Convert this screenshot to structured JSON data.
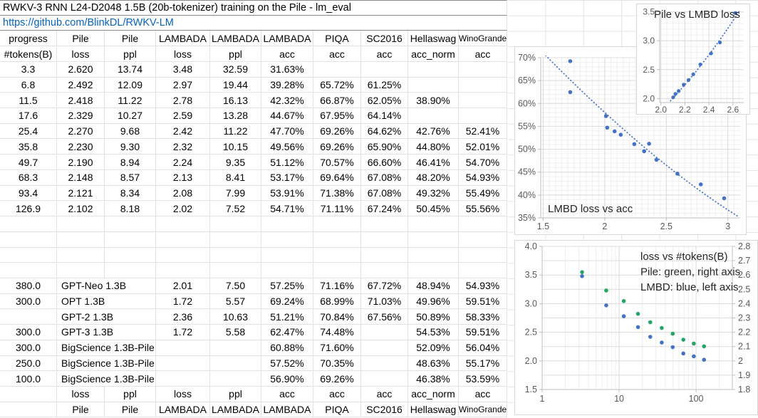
{
  "title": "RWKV-3 RNN L24-D2048 1.5B (20b-tokenizer) training on the Pile - lm_eval",
  "link": "https://github.com/BlinkDL/RWKV-LM",
  "colors": {
    "accent_blue": "#4472c4",
    "accent_green": "#22a565",
    "link_blue": "#0563c1"
  },
  "table": {
    "header_row1": [
      "progress",
      "Pile",
      "Pile",
      "LAMBADA",
      "LAMBADA",
      "LAMBADA",
      "PIQA",
      "SC2016",
      "Hellaswag",
      "WinoGrande"
    ],
    "header_row2": [
      "#tokens(B)",
      "loss",
      "ppl",
      "loss",
      "ppl",
      "acc",
      "acc",
      "acc",
      "acc_norm",
      "acc"
    ],
    "rwkv_rows": [
      [
        "3.3",
        "2.620",
        "13.74",
        "3.48",
        "32.59",
        "31.63%",
        "",
        "",
        "",
        ""
      ],
      [
        "6.8",
        "2.492",
        "12.09",
        "2.97",
        "19.44",
        "39.28%",
        "65.72%",
        "61.25%",
        "",
        ""
      ],
      [
        "11.5",
        "2.418",
        "11.22",
        "2.78",
        "16.13",
        "42.32%",
        "66.87%",
        "62.05%",
        "38.90%",
        ""
      ],
      [
        "17.6",
        "2.329",
        "10.27",
        "2.59",
        "13.28",
        "44.67%",
        "67.95%",
        "64.14%",
        "",
        ""
      ],
      [
        "25.4",
        "2.270",
        "9.68",
        "2.42",
        "11.22",
        "47.70%",
        "69.26%",
        "64.62%",
        "42.76%",
        "52.41%"
      ],
      [
        "35.8",
        "2.230",
        "9.30",
        "2.32",
        "10.15",
        "49.56%",
        "69.26%",
        "65.90%",
        "44.80%",
        "52.01%"
      ],
      [
        "49.7",
        "2.190",
        "8.94",
        "2.24",
        "9.35",
        "51.12%",
        "70.57%",
        "66.60%",
        "46.41%",
        "54.70%"
      ],
      [
        "68.3",
        "2.148",
        "8.57",
        "2.13",
        "8.41",
        "53.17%",
        "69.64%",
        "67.08%",
        "48.20%",
        "54.93%"
      ],
      [
        "93.4",
        "2.121",
        "8.34",
        "2.08",
        "7.99",
        "53.91%",
        "71.38%",
        "67.08%",
        "49.32%",
        "55.49%"
      ],
      [
        "126.9",
        "2.102",
        "8.18",
        "2.02",
        "7.52",
        "54.71%",
        "71.11%",
        "67.24%",
        "50.45%",
        "55.56%"
      ]
    ],
    "baseline_rows": [
      [
        "380.0",
        "GPT-Neo 1.3B",
        "2.01",
        "7.50",
        "57.25%",
        "71.16%",
        "67.72%",
        "48.94%",
        "54.93%"
      ],
      [
        "300.0",
        "OPT 1.3B",
        "1.72",
        "5.57",
        "69.24%",
        "68.99%",
        "71.03%",
        "49.96%",
        "59.51%"
      ],
      [
        "",
        "GPT-2 1.3B",
        "2.36",
        "10.63",
        "51.21%",
        "70.84%",
        "67.56%",
        "50.89%",
        "58.33%"
      ],
      [
        "300.0",
        "GPT-3 1.3B",
        "1.72",
        "5.58",
        "62.47%",
        "74.48%",
        "",
        "54.53%",
        "59.51%"
      ],
      [
        "300.0",
        "BigScience 1.3B-Pile",
        "",
        "",
        "60.88%",
        "71.60%",
        "",
        "52.09%",
        "56.04%"
      ],
      [
        "250.0",
        "BigScience 1.3B-Pile",
        "",
        "",
        "57.52%",
        "70.35%",
        "",
        "48.63%",
        "55.17%"
      ],
      [
        "100.0",
        "BigScience 1.3B-Pile",
        "",
        "",
        "56.90%",
        "69.26%",
        "",
        "46.38%",
        "53.59%"
      ]
    ],
    "footer_row1": [
      "",
      "loss",
      "ppl",
      "loss",
      "ppl",
      "acc",
      "acc",
      "acc",
      "acc_norm",
      "acc"
    ],
    "footer_row2": [
      "",
      "Pile",
      "Pile",
      "LAMBADA",
      "LAMBADA",
      "LAMBADA",
      "PIQA",
      "SC2016",
      "Hellaswag",
      "WinoGrande"
    ]
  },
  "chart_data": [
    {
      "type": "scatter",
      "name": "pile-vs-lmbd-loss",
      "title": "Pile vs LMBD loss",
      "xlim": [
        1.99,
        2.69
      ],
      "ylim": [
        1.93,
        3.52
      ],
      "xticks": [
        2.0,
        2.2,
        2.4,
        2.6
      ],
      "xtick_labels": [
        "2.0",
        "2.2",
        "2.4",
        "2.6"
      ],
      "yticks": [
        2.0,
        2.5,
        3.0,
        3.5
      ],
      "ytick_labels": [
        "2.0",
        "2.5",
        "3.0",
        "3.5"
      ],
      "grid": true,
      "point_color": "#4472c4",
      "points": [
        [
          2.62,
          3.48
        ],
        [
          2.492,
          2.97
        ],
        [
          2.418,
          2.78
        ],
        [
          2.329,
          2.59
        ],
        [
          2.27,
          2.42
        ],
        [
          2.23,
          2.32
        ],
        [
          2.19,
          2.24
        ],
        [
          2.148,
          2.13
        ],
        [
          2.121,
          2.08
        ],
        [
          2.102,
          2.02
        ]
      ],
      "trendline": {
        "style": "dotted",
        "from": [
          2.08,
          1.96
        ],
        "control": [
          2.37,
          2.6
        ],
        "to": [
          2.655,
          3.52
        ]
      }
    },
    {
      "type": "scatter",
      "name": "lmbd-loss-vs-acc",
      "title": "LMBD loss vs acc",
      "xlim": [
        1.48,
        3.1
      ],
      "ylim": [
        35,
        70
      ],
      "xticks": [
        1.5,
        2,
        2.5,
        3
      ],
      "xtick_labels": [
        "1.5",
        "2",
        "2.5",
        "3"
      ],
      "yticks": [
        35,
        40,
        45,
        50,
        55,
        60,
        65,
        70
      ],
      "ytick_labels": [
        "35%",
        "40%",
        "45%",
        "50%",
        "55%",
        "60%",
        "65%",
        "70%"
      ],
      "grid": true,
      "point_color": "#4472c4",
      "points": [
        [
          3.48,
          31.63
        ],
        [
          2.97,
          39.28
        ],
        [
          2.78,
          42.32
        ],
        [
          2.59,
          44.67
        ],
        [
          2.42,
          47.7
        ],
        [
          2.32,
          49.56
        ],
        [
          2.24,
          51.12
        ],
        [
          2.13,
          53.17
        ],
        [
          2.08,
          53.91
        ],
        [
          2.02,
          54.71
        ],
        [
          2.01,
          57.25
        ],
        [
          1.72,
          69.24
        ],
        [
          2.36,
          51.21
        ],
        [
          1.72,
          62.47
        ]
      ],
      "trendline": {
        "style": "dotted",
        "from": [
          1.52,
          70.5
        ],
        "control": [
          2.37,
          47.3
        ],
        "to": [
          3.09,
          35.2
        ]
      }
    },
    {
      "type": "scatter",
      "name": "loss-vs-tokens",
      "legend_lines": [
        "loss vs #tokens(B)",
        "Pile: green, right axis",
        "LMBD: blue, left axis"
      ],
      "x_log": true,
      "xlim": [
        1,
        296
      ],
      "xticks": [
        1,
        10,
        100
      ],
      "xtick_labels": [
        "1",
        "10",
        "100"
      ],
      "ylim_left": [
        1.5,
        4.0
      ],
      "yticks_left": [
        1.5,
        2.0,
        2.5,
        3.0,
        3.5,
        4.0
      ],
      "ytick_labels_left": [
        "1.5",
        "2.0",
        "2.5",
        "3.0",
        "3.5",
        "4.0"
      ],
      "ylim_right": [
        1.8,
        2.8
      ],
      "yticks_right": [
        1.8,
        1.9,
        2.0,
        2.1,
        2.2,
        2.3,
        2.4,
        2.5,
        2.6,
        2.7,
        2.8
      ],
      "ytick_labels_right": [
        "1.8",
        "1.9",
        "2",
        "2.1",
        "2.2",
        "2.3",
        "2.4",
        "2.5",
        "2.6",
        "2.7",
        "2.8"
      ],
      "grid": true,
      "x": [
        3.3,
        6.8,
        11.5,
        17.6,
        25.4,
        35.8,
        49.7,
        68.3,
        93.4,
        126.9
      ],
      "series": [
        {
          "name": "Pile loss",
          "axis": "right",
          "color": "#22a565",
          "values": [
            2.62,
            2.492,
            2.418,
            2.329,
            2.27,
            2.23,
            2.19,
            2.148,
            2.121,
            2.102
          ]
        },
        {
          "name": "LMBD loss",
          "axis": "left",
          "color": "#4472c4",
          "values": [
            3.48,
            2.97,
            2.78,
            2.59,
            2.42,
            2.32,
            2.24,
            2.13,
            2.08,
            2.02
          ]
        }
      ]
    }
  ]
}
